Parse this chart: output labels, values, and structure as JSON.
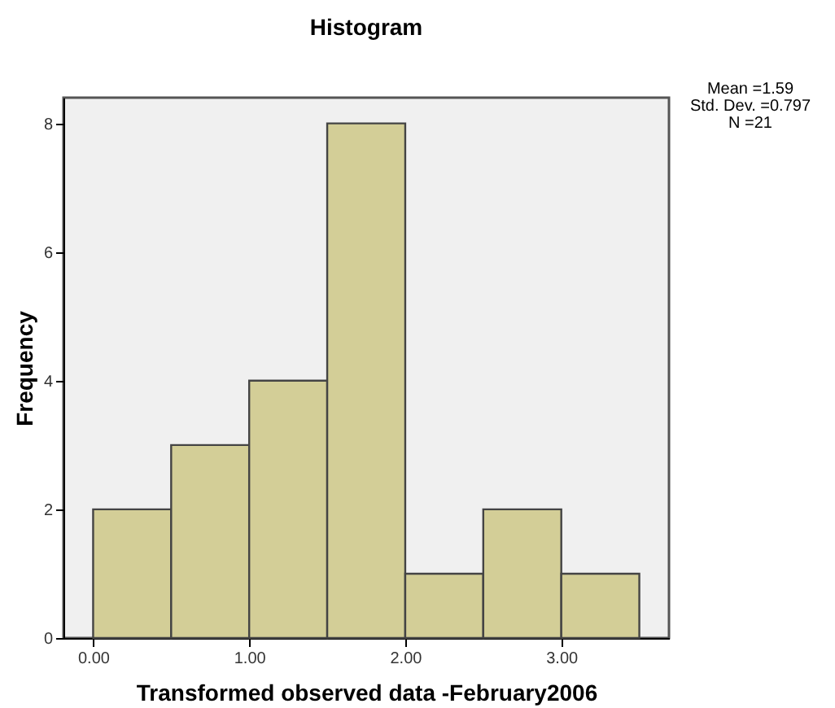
{
  "chart_data": {
    "type": "histogram",
    "title": "Histogram",
    "xlabel": "Transformed observed data -February2006",
    "ylabel": "Frequency",
    "bins": [
      0,
      0.5,
      1,
      1.5,
      2,
      2.5,
      3,
      3.5
    ],
    "values": [
      2,
      3,
      4,
      8,
      1,
      2,
      1
    ],
    "color": "#d3ce97",
    "xlim": [
      -0.19,
      3.69
    ],
    "ylim": [
      0,
      8.4
    ],
    "xticks": [
      {
        "value": 0,
        "label": "0.00"
      },
      {
        "value": 1,
        "label": "1.00"
      },
      {
        "value": 2,
        "label": "2.00"
      },
      {
        "value": 3,
        "label": "3.00"
      }
    ],
    "yticks": [
      0,
      2,
      4,
      6,
      8
    ],
    "grid": false,
    "annotations": [
      "Mean =1.59",
      "Std. Dev. =0.797",
      "N =21"
    ]
  }
}
